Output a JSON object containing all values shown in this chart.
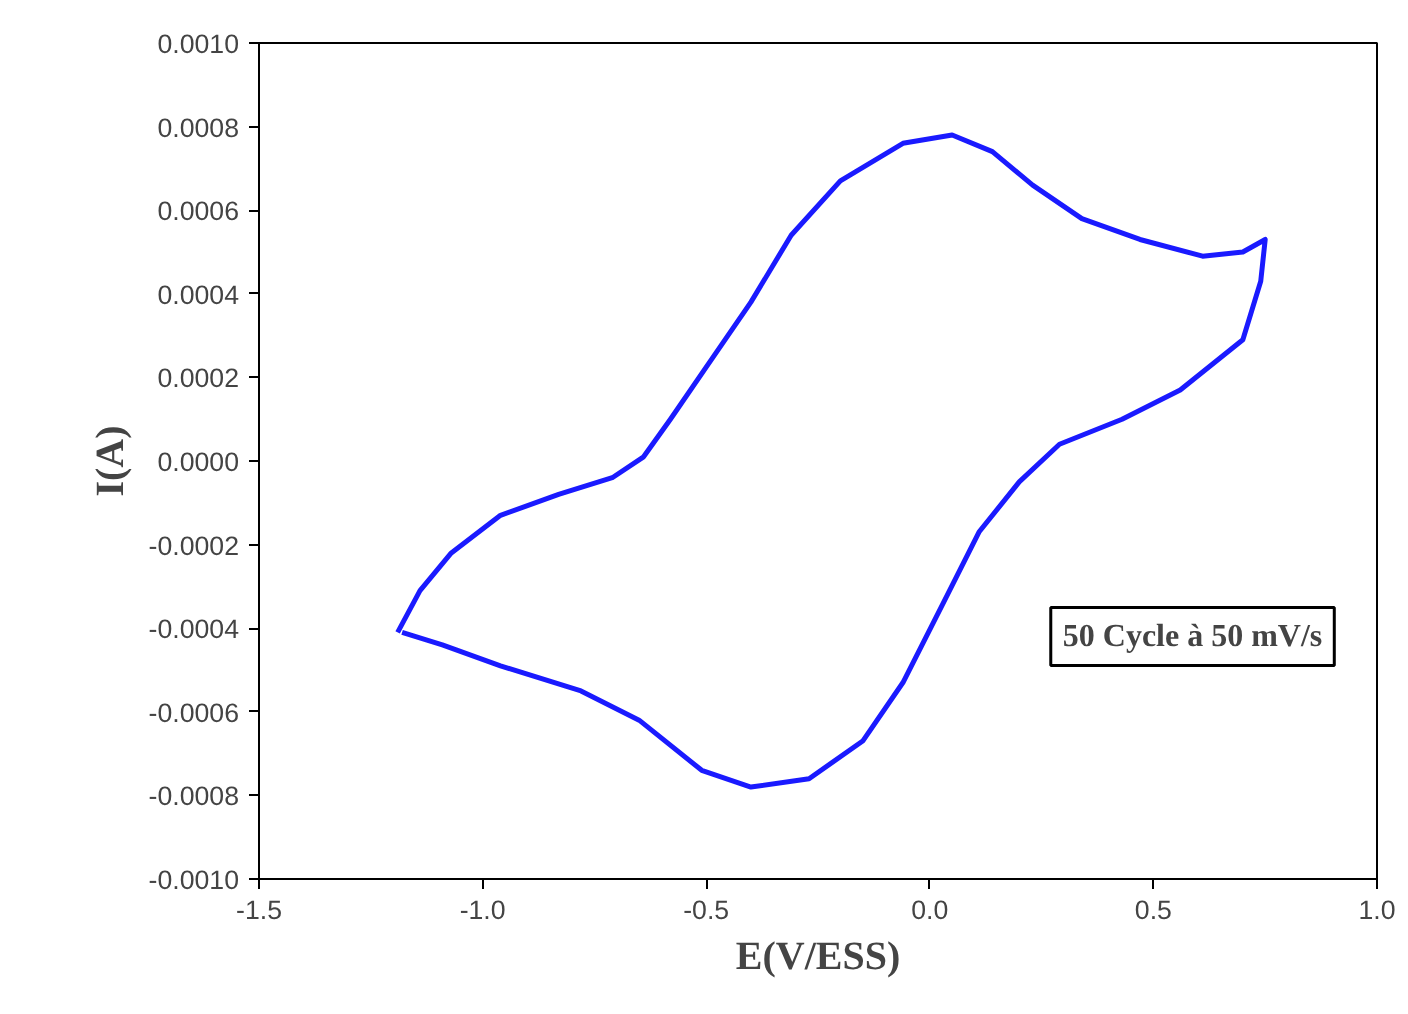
{
  "chart_data": {
    "type": "line",
    "xlabel": "E(V/ESS)",
    "ylabel": "I(A)",
    "xlim": [
      -1.5,
      1.0
    ],
    "ylim": [
      -0.001,
      0.001
    ],
    "xticks": [
      {
        "value": -1.5,
        "label": "-1.5"
      },
      {
        "value": -1.0,
        "label": "-1.0"
      },
      {
        "value": -0.5,
        "label": "-0.5"
      },
      {
        "value": 0.0,
        "label": "0.0"
      },
      {
        "value": 0.5,
        "label": "0.5"
      },
      {
        "value": 1.0,
        "label": "1.0"
      }
    ],
    "yticks": [
      {
        "value": -0.001,
        "label": "-0.0010"
      },
      {
        "value": -0.0008,
        "label": "-0.0008"
      },
      {
        "value": -0.0006,
        "label": "-0.0006"
      },
      {
        "value": -0.0004,
        "label": "-0.0004"
      },
      {
        "value": -0.0002,
        "label": "-0.0002"
      },
      {
        "value": 0.0,
        "label": "0.0000"
      },
      {
        "value": 0.0002,
        "label": "0.0002"
      },
      {
        "value": 0.0004,
        "label": "0.0004"
      },
      {
        "value": 0.0006,
        "label": "0.0006"
      },
      {
        "value": 0.0008,
        "label": "0.0008"
      },
      {
        "value": 0.001,
        "label": "0.0010"
      }
    ],
    "grid": false,
    "line_style": "solid",
    "annotations": [
      "50 Cycle à 50 mV/s"
    ],
    "series": [
      {
        "color": "#1a1aff",
        "x": [
          -1.19,
          -1.14,
          -1.07,
          -0.96,
          -0.83,
          -0.71,
          -0.64,
          -0.58,
          -0.49,
          -0.4,
          -0.31,
          -0.2,
          -0.06,
          0.05,
          0.14,
          0.23,
          0.34,
          0.47,
          0.61,
          0.7,
          0.75,
          0.74,
          0.7,
          0.56,
          0.43,
          0.29,
          0.2,
          0.11,
          0.03,
          -0.06,
          -0.15,
          -0.27,
          -0.4,
          -0.51,
          -0.65,
          -0.78,
          -0.96,
          -1.09,
          -1.18
        ],
        "values": [
          -0.00041,
          -0.00031,
          -0.00022,
          -0.00013,
          -8e-05,
          -4e-05,
          1e-05,
          0.0001,
          0.00024,
          0.00038,
          0.00054,
          0.00067,
          0.00076,
          0.00078,
          0.00074,
          0.00066,
          0.00058,
          0.00053,
          0.00049,
          0.0005,
          0.00053,
          0.00043,
          0.00029,
          0.00017,
          0.0001,
          4e-05,
          -5e-05,
          -0.00017,
          -0.00034,
          -0.00053,
          -0.00067,
          -0.00076,
          -0.00078,
          -0.00074,
          -0.00062,
          -0.00055,
          -0.00049,
          -0.00044,
          -0.00041
        ]
      }
    ]
  }
}
